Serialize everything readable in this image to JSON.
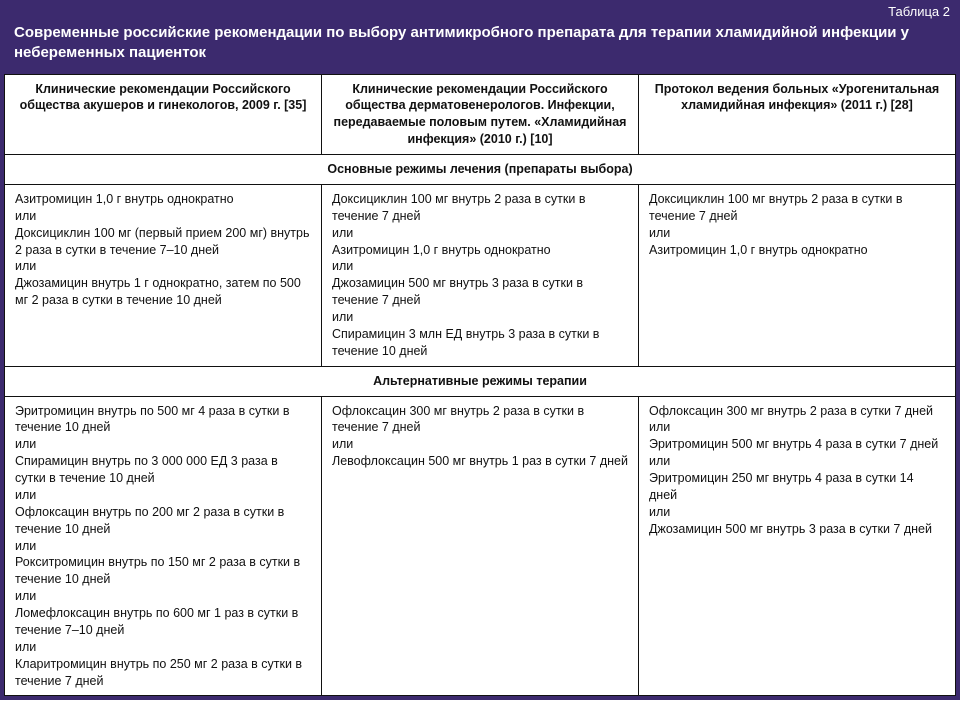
{
  "tableLabel": "Таблица 2",
  "title": "Современные российские рекомендации по выбору антимикробного препарата для терапии хламидийной инфекции у небеременных пациенток",
  "colors": {
    "headerBg": "#3c2a6e",
    "headerText": "#ffffff",
    "cellBg": "#ffffff",
    "border": "#111111",
    "text": "#111111"
  },
  "columns": [
    "Клинические рекомендации Российского общества акушеров и гинекологов, 2009 г. [35]",
    "Клинические рекомендации Российского общества дерматовенерологов. Инфекции, передаваемые половым путем. «Хламидийная инфекция» (2010 г.) [10]",
    "Протокол ведения больных «Урогенитальная хламидийная инфекция» (2011 г.) [28]"
  ],
  "sections": [
    {
      "heading": "Основные режимы лечения (препараты выбора)",
      "cells": [
        "Азитромицин 1,0 г внутрь однократно\nили\nДоксициклин 100 мг (первый прием 200 мг) внутрь 2 раза в сутки в течение 7–10 дней\nили\nДжозамицин внутрь 1 г однократно, затем по 500 мг 2 раза в сутки в течение 10 дней",
        "Доксициклин 100 мг внутрь 2 раза в сутки в течение 7 дней\nили\nАзитромицин 1,0 г внутрь однократно\nили\nДжозамицин 500 мг внутрь 3 раза в сутки в течение 7 дней\nили\nСпирамицин 3 млн ЕД внутрь 3 раза в сутки в течение 10 дней",
        "Доксициклин 100 мг внутрь 2 раза в сутки в течение 7 дней\nили\nАзитромицин 1,0 г внутрь однократно"
      ]
    },
    {
      "heading": "Альтернативные режимы терапии",
      "cells": [
        "Эритромицин внутрь по 500 мг 4 раза в сутки в течение 10 дней\nили\nСпирамицин внутрь по 3 000 000 ЕД 3 раза в сутки в течение 10 дней\nили\nОфлоксацин внутрь по 200 мг 2 раза в сутки в течение 10 дней\nили\nРокситромицин внутрь по 150 мг 2 раза в сутки в течение 10 дней\nили\nЛомефлоксацин внутрь по 600 мг 1 раз в сутки в течение 7–10 дней\nили\nКларитромицин внутрь по 250 мг 2 раза в сутки в течение 7 дней",
        "Офлоксацин 300 мг внутрь 2 раза в сутки в течение 7 дней\nили\nЛевофлоксацин 500 мг внутрь 1 раз в сутки 7 дней",
        "Офлоксацин 300 мг внутрь 2 раза в сутки 7 дней\nили\nЭритромицин 500 мг внутрь 4 раза в сутки 7 дней\nили\nЭритромицин 250 мг внутрь 4 раза в сутки 14 дней\nили\nДжозамицин 500 мг внутрь 3 раза в сутки 7 дней"
      ]
    }
  ]
}
